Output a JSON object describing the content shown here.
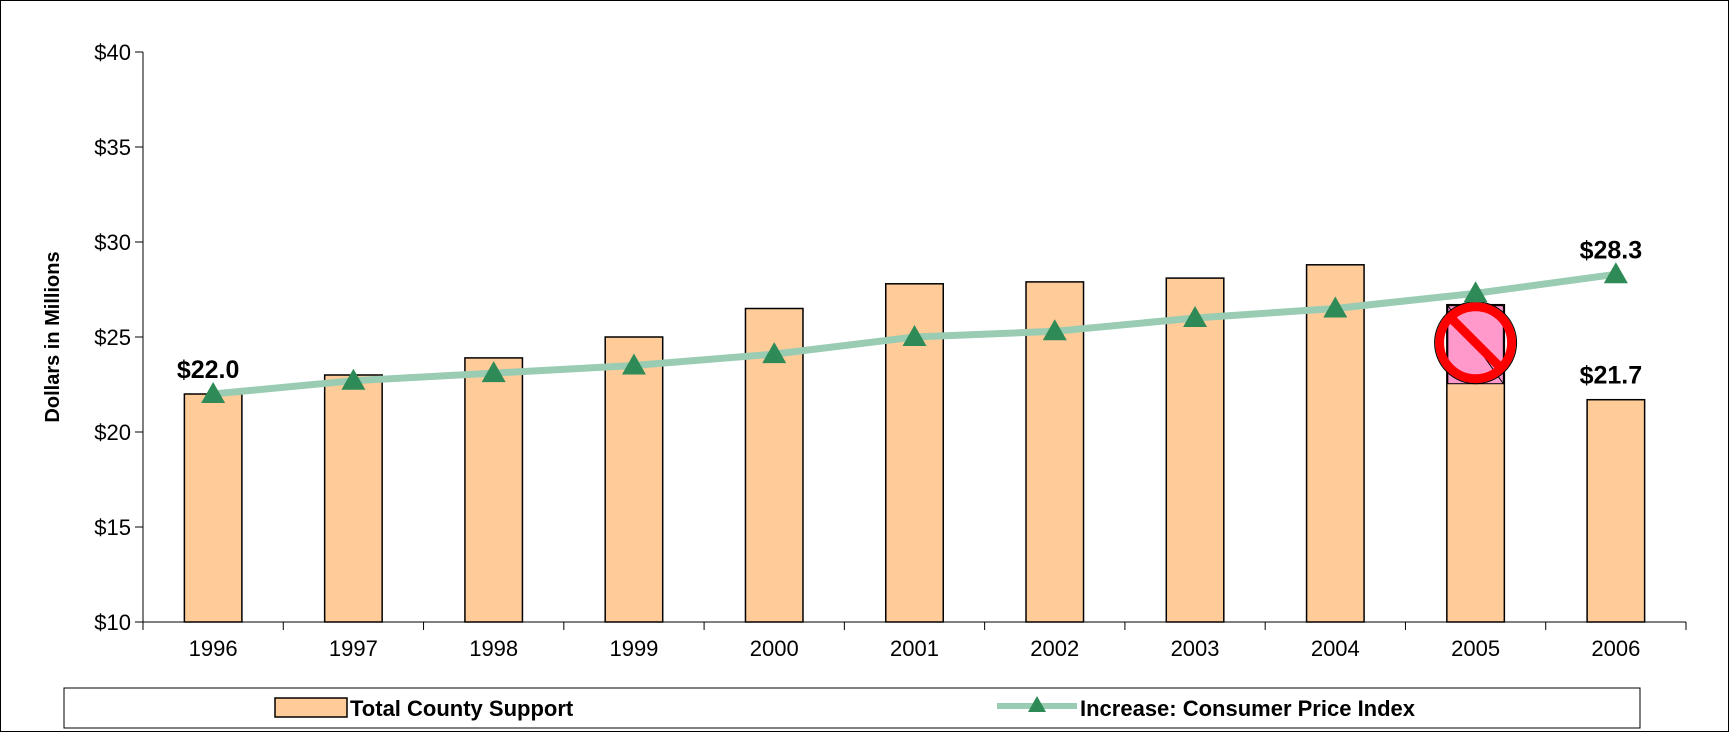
{
  "chart_data": {
    "type": "bar",
    "categories": [
      "1996",
      "1997",
      "1998",
      "1999",
      "2000",
      "2001",
      "2002",
      "2003",
      "2004",
      "2005",
      "2006"
    ],
    "ylabel": "Dollars in Millions",
    "ylim": [
      10,
      40
    ],
    "yticks": [
      10,
      15,
      20,
      25,
      30,
      35,
      40
    ],
    "ytick_labels": [
      "$10",
      "$15",
      "$20",
      "$25",
      "$30",
      "$35",
      "$40"
    ],
    "grid": false,
    "legend_position": "bottom",
    "series": [
      {
        "name": "Total County Support",
        "type": "bar",
        "color": "#FFCC99",
        "values": [
          22.0,
          23.0,
          23.9,
          25.0,
          26.5,
          27.8,
          27.9,
          28.1,
          28.8,
          26.7,
          21.7
        ]
      },
      {
        "name": "Increase: Consumer Price Index",
        "type": "line",
        "line_color": "#99CCB2",
        "marker_color": "#2E8B57",
        "marker": "triangle",
        "values": [
          22.0,
          22.7,
          23.1,
          23.5,
          24.1,
          25.0,
          25.3,
          26.0,
          26.5,
          27.3,
          28.3
        ]
      }
    ],
    "annotations": [
      {
        "text": "$22.0",
        "series": 1,
        "index": 0
      },
      {
        "text": "$28.3",
        "series": 1,
        "index": 10
      },
      {
        "text": "$21.7",
        "series": 0,
        "index": 10
      }
    ],
    "prohibited_marker": {
      "category": "2005",
      "icon": "prohibited-icon",
      "fill": "#FF99CC",
      "ring": "#FF0000"
    }
  }
}
